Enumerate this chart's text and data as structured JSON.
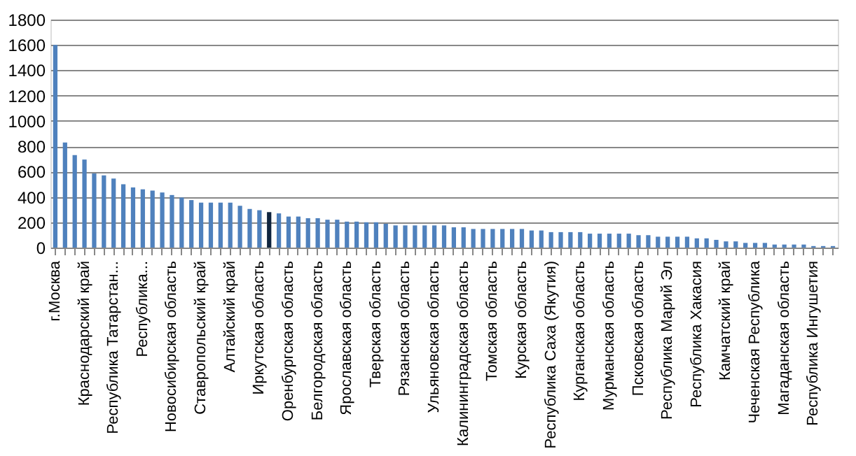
{
  "chart_data": {
    "type": "bar",
    "categories": [
      "г.Москва",
      null,
      null,
      "Краснодарский край",
      null,
      null,
      "Республика Татарстан...",
      null,
      null,
      "Республика...",
      null,
      null,
      "Новосибирская область",
      null,
      null,
      "Ставропольский край",
      null,
      null,
      "Алтайский край",
      null,
      null,
      "Иркутская область",
      null,
      null,
      "Оренбургская область",
      null,
      null,
      "Белгородская область",
      null,
      null,
      "Ярославская область",
      null,
      null,
      "Тверская область",
      null,
      null,
      "Рязанская область",
      null,
      null,
      "Ульяновская область",
      null,
      null,
      "Калининградская область",
      null,
      null,
      "Томская область",
      null,
      null,
      "Курская область",
      null,
      null,
      "Республика Саха (Якутия)",
      null,
      null,
      "Курганская область",
      null,
      null,
      "Мурманская область",
      null,
      null,
      "Псковская область",
      null,
      null,
      "Республика Марий Эл",
      null,
      null,
      "Республика Хакасия",
      null,
      null,
      "Камчатский край",
      null,
      null,
      "Чеченская  Республика",
      null,
      null,
      "Магаданская область",
      null,
      null,
      "Республика Ингушетия",
      null,
      null
    ],
    "values": [
      1600,
      830,
      730,
      695,
      585,
      570,
      545,
      500,
      475,
      460,
      450,
      435,
      415,
      395,
      375,
      355,
      355,
      355,
      355,
      330,
      305,
      295,
      280,
      270,
      245,
      245,
      232,
      232,
      220,
      220,
      205,
      205,
      200,
      200,
      188,
      175,
      175,
      175,
      175,
      175,
      175,
      160,
      160,
      147,
      147,
      147,
      147,
      147,
      147,
      135,
      135,
      122,
      122,
      122,
      122,
      110,
      110,
      110,
      110,
      110,
      98,
      98,
      86,
      86,
      86,
      86,
      73,
      73,
      61,
      49,
      49,
      37,
      37,
      37,
      24,
      24,
      24,
      24,
      12,
      12,
      12
    ],
    "colors": [
      "#4f81bd",
      "#4f81bd",
      "#4f81bd",
      "#4f81bd",
      "#4f81bd",
      "#4f81bd",
      "#4f81bd",
      "#4f81bd",
      "#4f81bd",
      "#4f81bd",
      "#4f81bd",
      "#4f81bd",
      "#4f81bd",
      "#4f81bd",
      "#4f81bd",
      "#4f81bd",
      "#4f81bd",
      "#4f81bd",
      "#4f81bd",
      "#4f81bd",
      "#4f81bd",
      "#4f81bd",
      "#0f243e",
      "#4f81bd",
      "#4f81bd",
      "#4f81bd",
      "#4f81bd",
      "#4f81bd",
      "#4f81bd",
      "#4f81bd",
      "#4f81bd",
      "#4f81bd",
      "#4f81bd",
      "#4f81bd",
      "#4f81bd",
      "#4f81bd",
      "#4f81bd",
      "#4f81bd",
      "#4f81bd",
      "#4f81bd",
      "#4f81bd",
      "#4f81bd",
      "#4f81bd",
      "#4f81bd",
      "#4f81bd",
      "#4f81bd",
      "#4f81bd",
      "#4f81bd",
      "#4f81bd",
      "#4f81bd",
      "#4f81bd",
      "#4f81bd",
      "#4f81bd",
      "#4f81bd",
      "#4f81bd",
      "#4f81bd",
      "#4f81bd",
      "#4f81bd",
      "#4f81bd",
      "#4f81bd",
      "#4f81bd",
      "#4f81bd",
      "#4f81bd",
      "#4f81bd",
      "#4f81bd",
      "#4f81bd",
      "#4f81bd",
      "#4f81bd",
      "#4f81bd",
      "#4f81bd",
      "#4f81bd",
      "#4f81bd",
      "#4f81bd",
      "#4f81bd",
      "#4f81bd",
      "#4f81bd",
      "#4f81bd",
      "#4f81bd",
      "#4f81bd",
      "#4f81bd",
      "#4f81bd"
    ],
    "ylim": [
      0,
      1800
    ],
    "yticks": [
      0,
      200,
      400,
      600,
      800,
      1000,
      1200,
      1400,
      1600,
      1800
    ],
    "grid": "y"
  }
}
